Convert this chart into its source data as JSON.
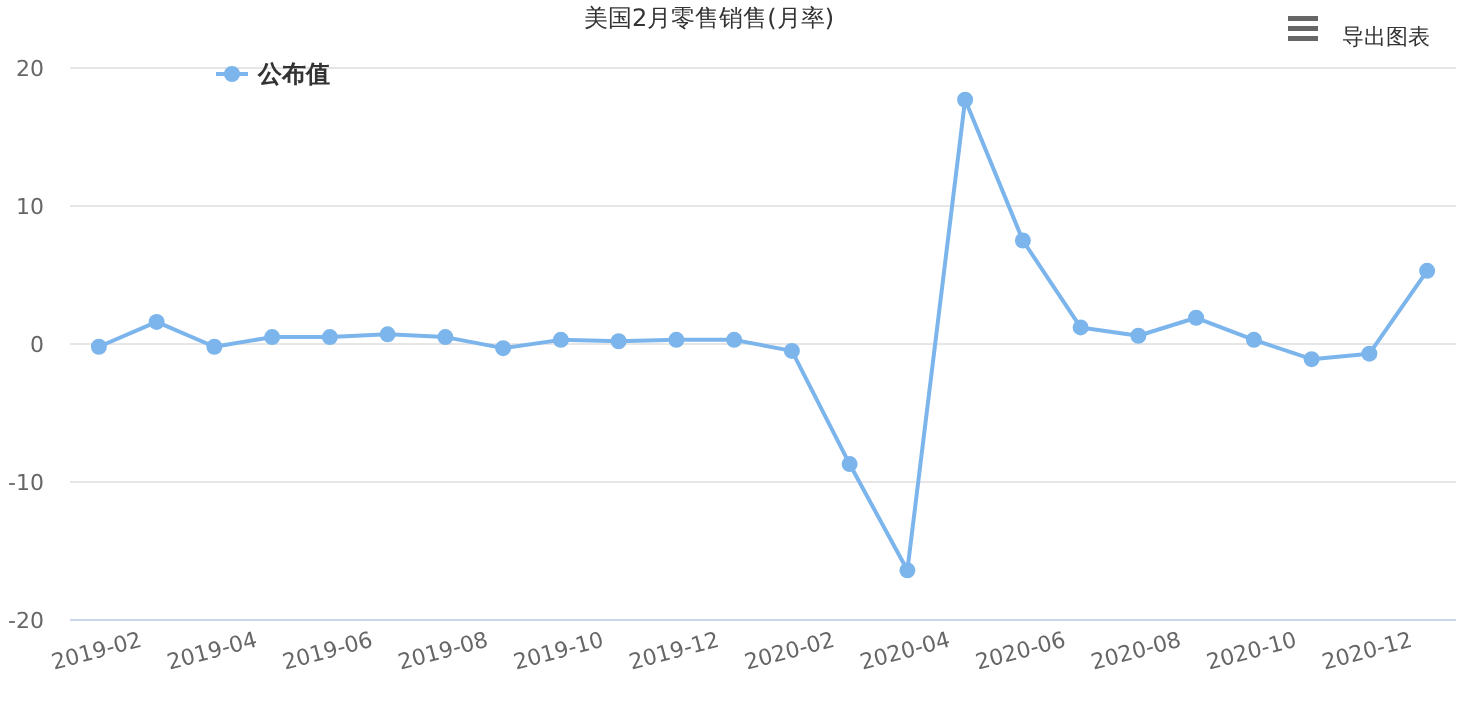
{
  "chart_data": {
    "type": "line",
    "title": "美国2月零售销售(月率)",
    "categories": [
      "2019-02",
      null,
      "2019-04",
      null,
      "2019-06",
      null,
      "2019-08",
      null,
      "2019-10",
      null,
      "2019-12",
      null,
      "2020-02",
      null,
      "2020-04",
      null,
      "2020-06",
      null,
      "2020-08",
      null,
      "2020-10",
      null,
      "2020-12",
      null
    ],
    "series": [
      {
        "name": "公布值",
        "color": "#7cb5ec",
        "values": [
          -0.2,
          1.6,
          -0.2,
          0.5,
          0.5,
          0.7,
          0.5,
          -0.3,
          0.3,
          0.2,
          0.3,
          0.3,
          -0.5,
          -8.7,
          -16.4,
          17.7,
          7.5,
          1.2,
          0.6,
          1.9,
          0.3,
          -1.1,
          -0.7,
          5.3
        ]
      }
    ],
    "ylim": [
      -20,
      20
    ],
    "yticks": [
      -20,
      -10,
      0,
      10,
      20
    ],
    "grid": "y",
    "legend": "top left",
    "marker": "circle",
    "line_style": "solid",
    "annotations": [
      "导出图表"
    ]
  }
}
